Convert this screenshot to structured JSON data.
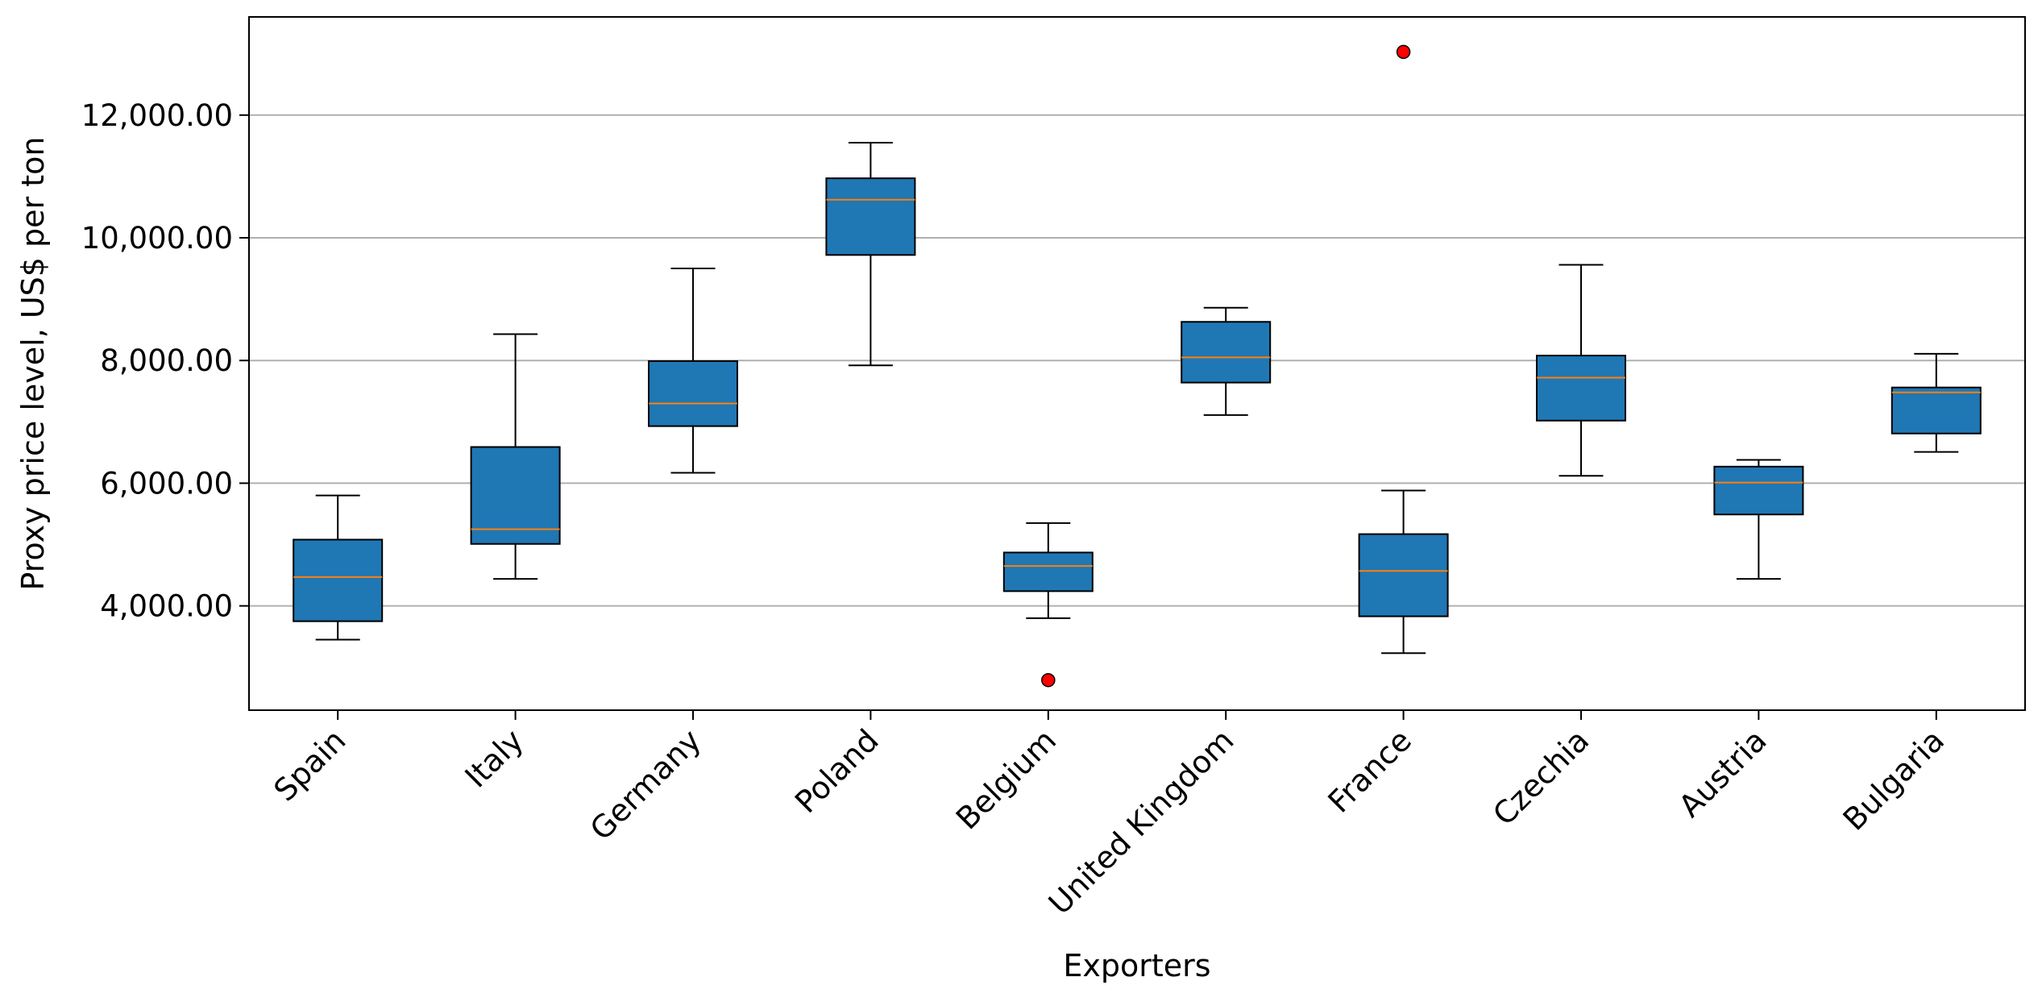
{
  "chart_data": {
    "type": "boxplot",
    "title": "",
    "xlabel": "Exporters",
    "ylabel": "Proxy price level, US$ per ton",
    "ylim": [
      2300,
      13600
    ],
    "yticks": [
      4000,
      6000,
      8000,
      10000,
      12000
    ],
    "ytick_labels": [
      "4,000.00",
      "6,000.00",
      "8,000.00",
      "10,000.00",
      "12,000.00"
    ],
    "grid": "horizontal",
    "colors": {
      "box_fill": "#1f77b4",
      "median": "#ff7f0e",
      "outlier": "#ff0000",
      "grid": "#b0b0b0"
    },
    "categories": [
      "Spain",
      "Italy",
      "Germany",
      "Poland",
      "Belgium",
      "United Kingdom",
      "France",
      "Czechia",
      "Austria",
      "Bulgaria"
    ],
    "boxes": [
      {
        "name": "Spain",
        "whisker_low": 3450,
        "q1": 3750,
        "median": 4470,
        "q3": 5080,
        "whisker_high": 5800,
        "outliers": []
      },
      {
        "name": "Italy",
        "whisker_low": 4440,
        "q1": 5010,
        "median": 5250,
        "q3": 6590,
        "whisker_high": 8430,
        "outliers": []
      },
      {
        "name": "Germany",
        "whisker_low": 6170,
        "q1": 6930,
        "median": 7300,
        "q3": 7990,
        "whisker_high": 9500,
        "outliers": []
      },
      {
        "name": "Poland",
        "whisker_low": 7920,
        "q1": 9720,
        "median": 10620,
        "q3": 10970,
        "whisker_high": 11550,
        "outliers": []
      },
      {
        "name": "Belgium",
        "whisker_low": 3800,
        "q1": 4240,
        "median": 4650,
        "q3": 4870,
        "whisker_high": 5350,
        "outliers": [
          2790
        ]
      },
      {
        "name": "United Kingdom",
        "whisker_low": 7110,
        "q1": 7640,
        "median": 8050,
        "q3": 8630,
        "whisker_high": 8860,
        "outliers": []
      },
      {
        "name": "France",
        "whisker_low": 3230,
        "q1": 3830,
        "median": 4570,
        "q3": 5170,
        "whisker_high": 5880,
        "outliers": [
          13030
        ]
      },
      {
        "name": "Czechia",
        "whisker_low": 6120,
        "q1": 7020,
        "median": 7720,
        "q3": 8080,
        "whisker_high": 9560,
        "outliers": []
      },
      {
        "name": "Austria",
        "whisker_low": 4440,
        "q1": 5490,
        "median": 6010,
        "q3": 6270,
        "whisker_high": 6380,
        "outliers": []
      },
      {
        "name": "Bulgaria",
        "whisker_low": 6510,
        "q1": 6810,
        "median": 7480,
        "q3": 7560,
        "whisker_high": 8110,
        "outliers": []
      }
    ]
  }
}
